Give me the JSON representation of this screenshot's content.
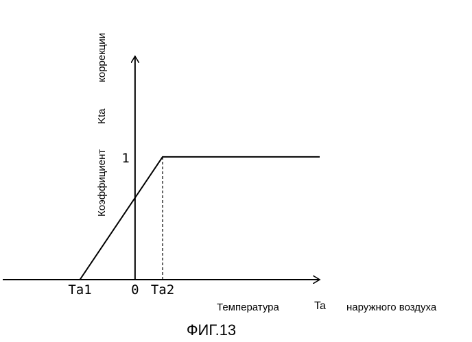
{
  "chart_data": {
    "type": "line",
    "caption": "ФИГ.13",
    "xlabel": {
      "prefix": "Температура",
      "symbol": "Ta",
      "suffix": "наружного воздуха"
    },
    "ylabel": {
      "prefix": "Коэффициент",
      "symbol": "Kta",
      "suffix": "коррекции"
    },
    "x_ticks": [
      {
        "label": "Ta1",
        "value": -2
      },
      {
        "label": "0",
        "value": 0
      },
      {
        "label": "Ta2",
        "value": 1
      }
    ],
    "y_ticks": [
      {
        "label": "1",
        "value": 1
      }
    ],
    "xlim": [
      -4.8,
      6.7
    ],
    "ylim": [
      0,
      1.82
    ],
    "series": [
      {
        "x": [
          -2,
          1,
          6.7
        ],
        "y": [
          0,
          1,
          1
        ]
      }
    ],
    "guides": [
      {
        "style": "dashed",
        "x": [
          1,
          1
        ],
        "y": [
          0,
          1
        ]
      }
    ],
    "grid": false,
    "legend": "none"
  }
}
